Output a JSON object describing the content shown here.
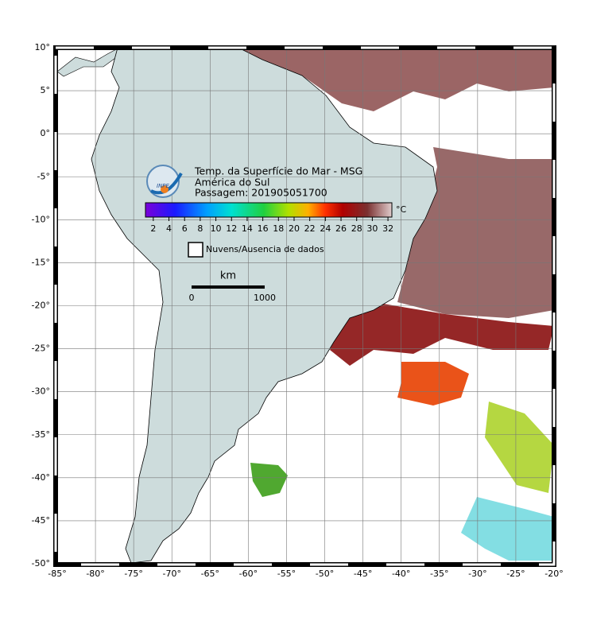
{
  "header": {
    "lines": [
      "Temp. da Superfície do Mar - MSG",
      "América do Sul",
      "Passagem: 201905051700"
    ]
  },
  "logo": "INPE",
  "colorbar": {
    "unit": "°C",
    "range": [
      1,
      32.5
    ],
    "ticks": [
      2,
      4,
      6,
      8,
      10,
      12,
      14,
      16,
      18,
      20,
      22,
      24,
      26,
      28,
      30,
      32
    ]
  },
  "legend": "Nuvens/Ausencia de dados",
  "scale_bar": {
    "unit": "km",
    "labels": [
      "0",
      "1000"
    ]
  },
  "axes": {
    "xlim": [
      -85,
      -20
    ],
    "ylim": [
      -50,
      10
    ],
    "xticks": [
      {
        "value": -85,
        "label": "-85°"
      },
      {
        "value": -80,
        "label": "-80°"
      },
      {
        "value": -75,
        "label": "-75°"
      },
      {
        "value": -70,
        "label": "-70°"
      },
      {
        "value": -65,
        "label": "-65°"
      },
      {
        "value": -60,
        "label": "-60°"
      },
      {
        "value": -55,
        "label": "-55°"
      },
      {
        "value": -50,
        "label": "-50°"
      },
      {
        "value": -45,
        "label": "-45°"
      },
      {
        "value": -40,
        "label": "-40°"
      },
      {
        "value": -35,
        "label": "-35°"
      },
      {
        "value": -30,
        "label": "-30°"
      },
      {
        "value": -25,
        "label": "-25°"
      },
      {
        "value": -20,
        "label": "-20°"
      }
    ],
    "yticks": [
      {
        "value": 10,
        "label": "10°"
      },
      {
        "value": 5,
        "label": "5°"
      },
      {
        "value": 0,
        "label": "0°"
      },
      {
        "value": -5,
        "label": "-5°"
      },
      {
        "value": -10,
        "label": "-10°"
      },
      {
        "value": -15,
        "label": "-15°"
      },
      {
        "value": -20,
        "label": "-20°"
      },
      {
        "value": -25,
        "label": "-25°"
      },
      {
        "value": -30,
        "label": "-30°"
      },
      {
        "value": -35,
        "label": "-35°"
      },
      {
        "value": -40,
        "label": "-40°"
      },
      {
        "value": -45,
        "label": "-45°"
      },
      {
        "value": -50,
        "label": "-50°"
      }
    ]
  }
}
